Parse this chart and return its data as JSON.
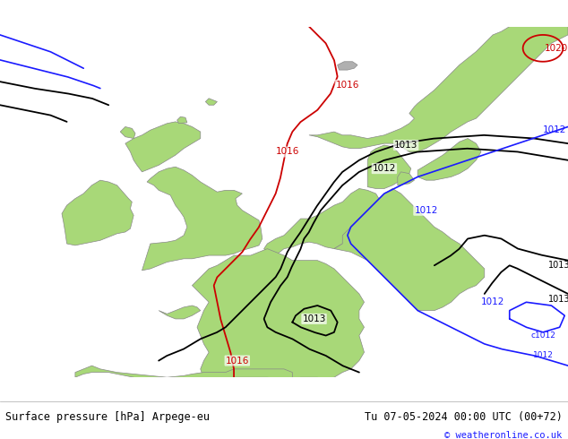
{
  "title_left": "Surface pressure [hPa] Arpege-eu",
  "title_right": "Tu 07-05-2024 00:00 UTC (00+72)",
  "credit": "© weatheronline.co.uk",
  "bg_ocean": "#dcdcdc",
  "bg_land_green": "#a8d878",
  "bg_land_gray": "#c8c8c8",
  "figsize": [
    6.34,
    4.9
  ],
  "dpi": 100,
  "footer_bg": "#ffffff",
  "col_red": "#cc0000",
  "col_black": "#000000",
  "col_blue": "#1a1aff",
  "col_border": "#888888",
  "map_xlim": [
    -14,
    20
  ],
  "map_ylim": [
    43.5,
    64.5
  ]
}
